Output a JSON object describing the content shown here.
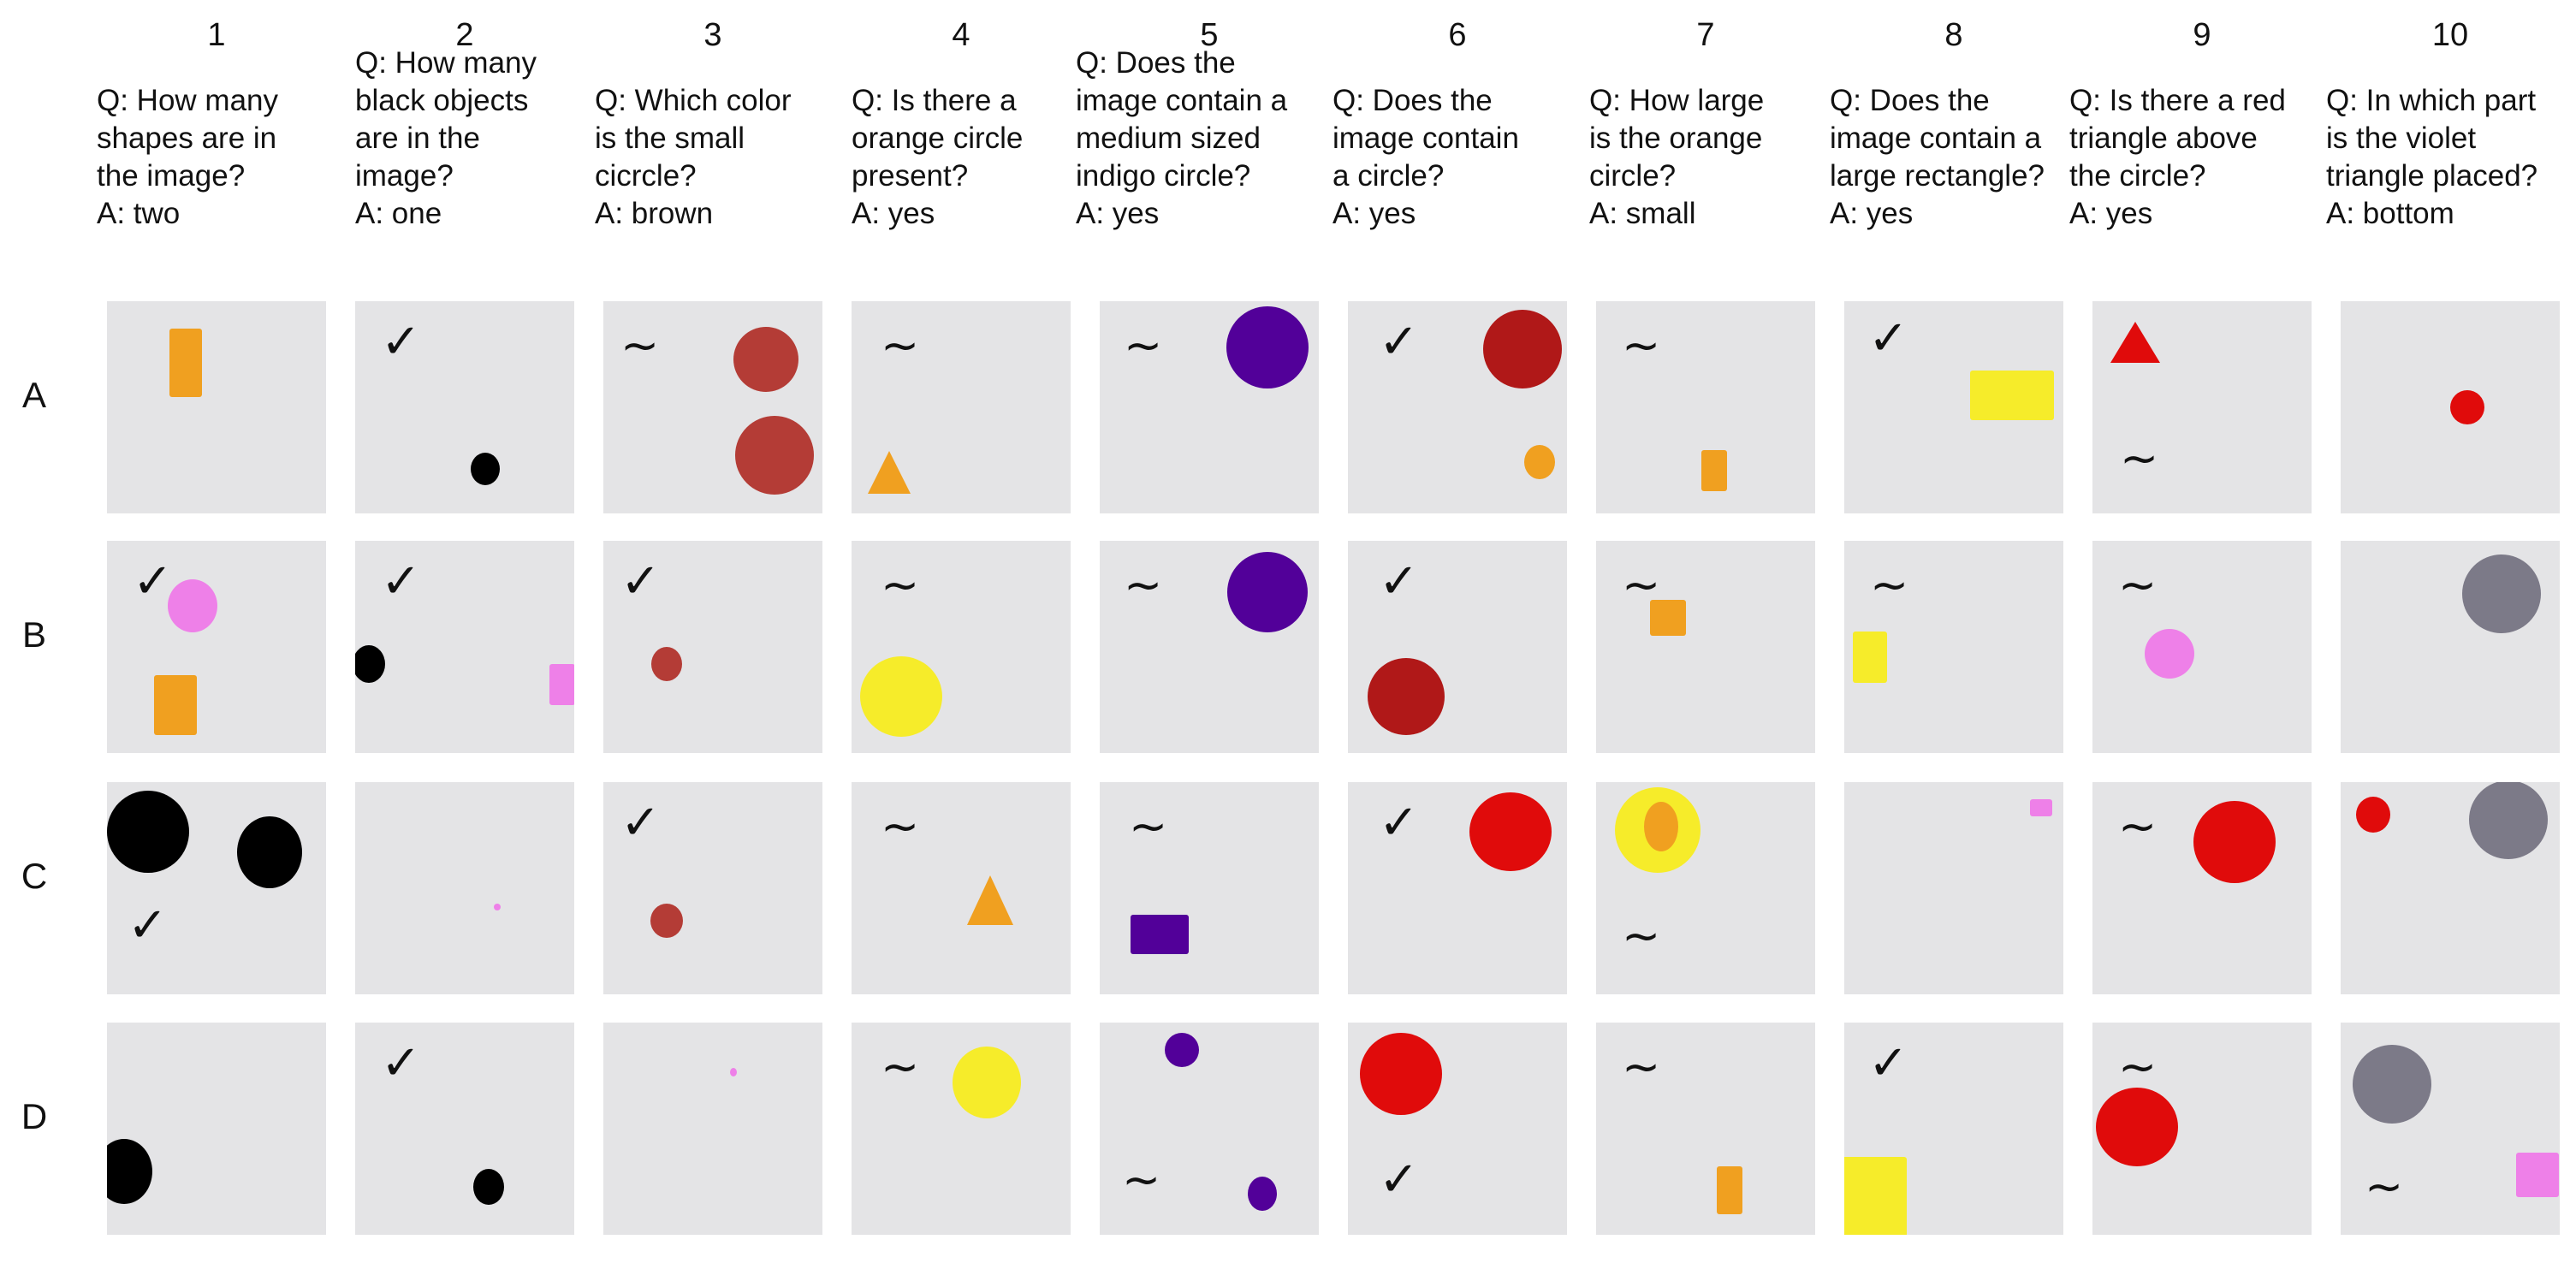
{
  "columns": [
    {
      "number": "1",
      "question": "Q: How many shapes are in the image?",
      "answer": "A: two"
    },
    {
      "number": "2",
      "question": "Q: How many black objects are in the image?",
      "answer": "A: one"
    },
    {
      "number": "3",
      "question": "Q: Which color is the small cicrcle?",
      "answer": "A: brown"
    },
    {
      "number": "4",
      "question": "Q: Is there a orange circle present?",
      "answer": "A: yes"
    },
    {
      "number": "5",
      "question": "Q: Does the image contain a medium sized indigo circle?",
      "answer": "A: yes"
    },
    {
      "number": "6",
      "question": "Q: Does the image contain a circle?",
      "answer": "A: yes"
    },
    {
      "number": "7",
      "question": "Q: How large is the orange circle?",
      "answer": "A: small"
    },
    {
      "number": "8",
      "question": "Q: Does the image contain a large rectangle?",
      "answer": "A: yes"
    },
    {
      "number": "9",
      "question": "Q: Is there a red triangle above the circle?",
      "answer": "A: yes"
    },
    {
      "number": "10",
      "question": "Q: In which part is the violet triangle placed?",
      "answer": "A: bottom"
    }
  ],
  "rows": [
    "A",
    "B",
    "C",
    "D"
  ],
  "mark_symbols": {
    "check": "✓",
    "partial": "∼"
  },
  "colors": {
    "orange": "#f0a020",
    "black": "#000000",
    "brown": "#b43c36",
    "indigo": "#520099",
    "red": "#e00b0b",
    "darkred": "#b01818",
    "yellow": "#f6ec2a",
    "pink": "#ee80e8",
    "gray": "#7c7a88",
    "violet": "#9a2c9a"
  }
}
